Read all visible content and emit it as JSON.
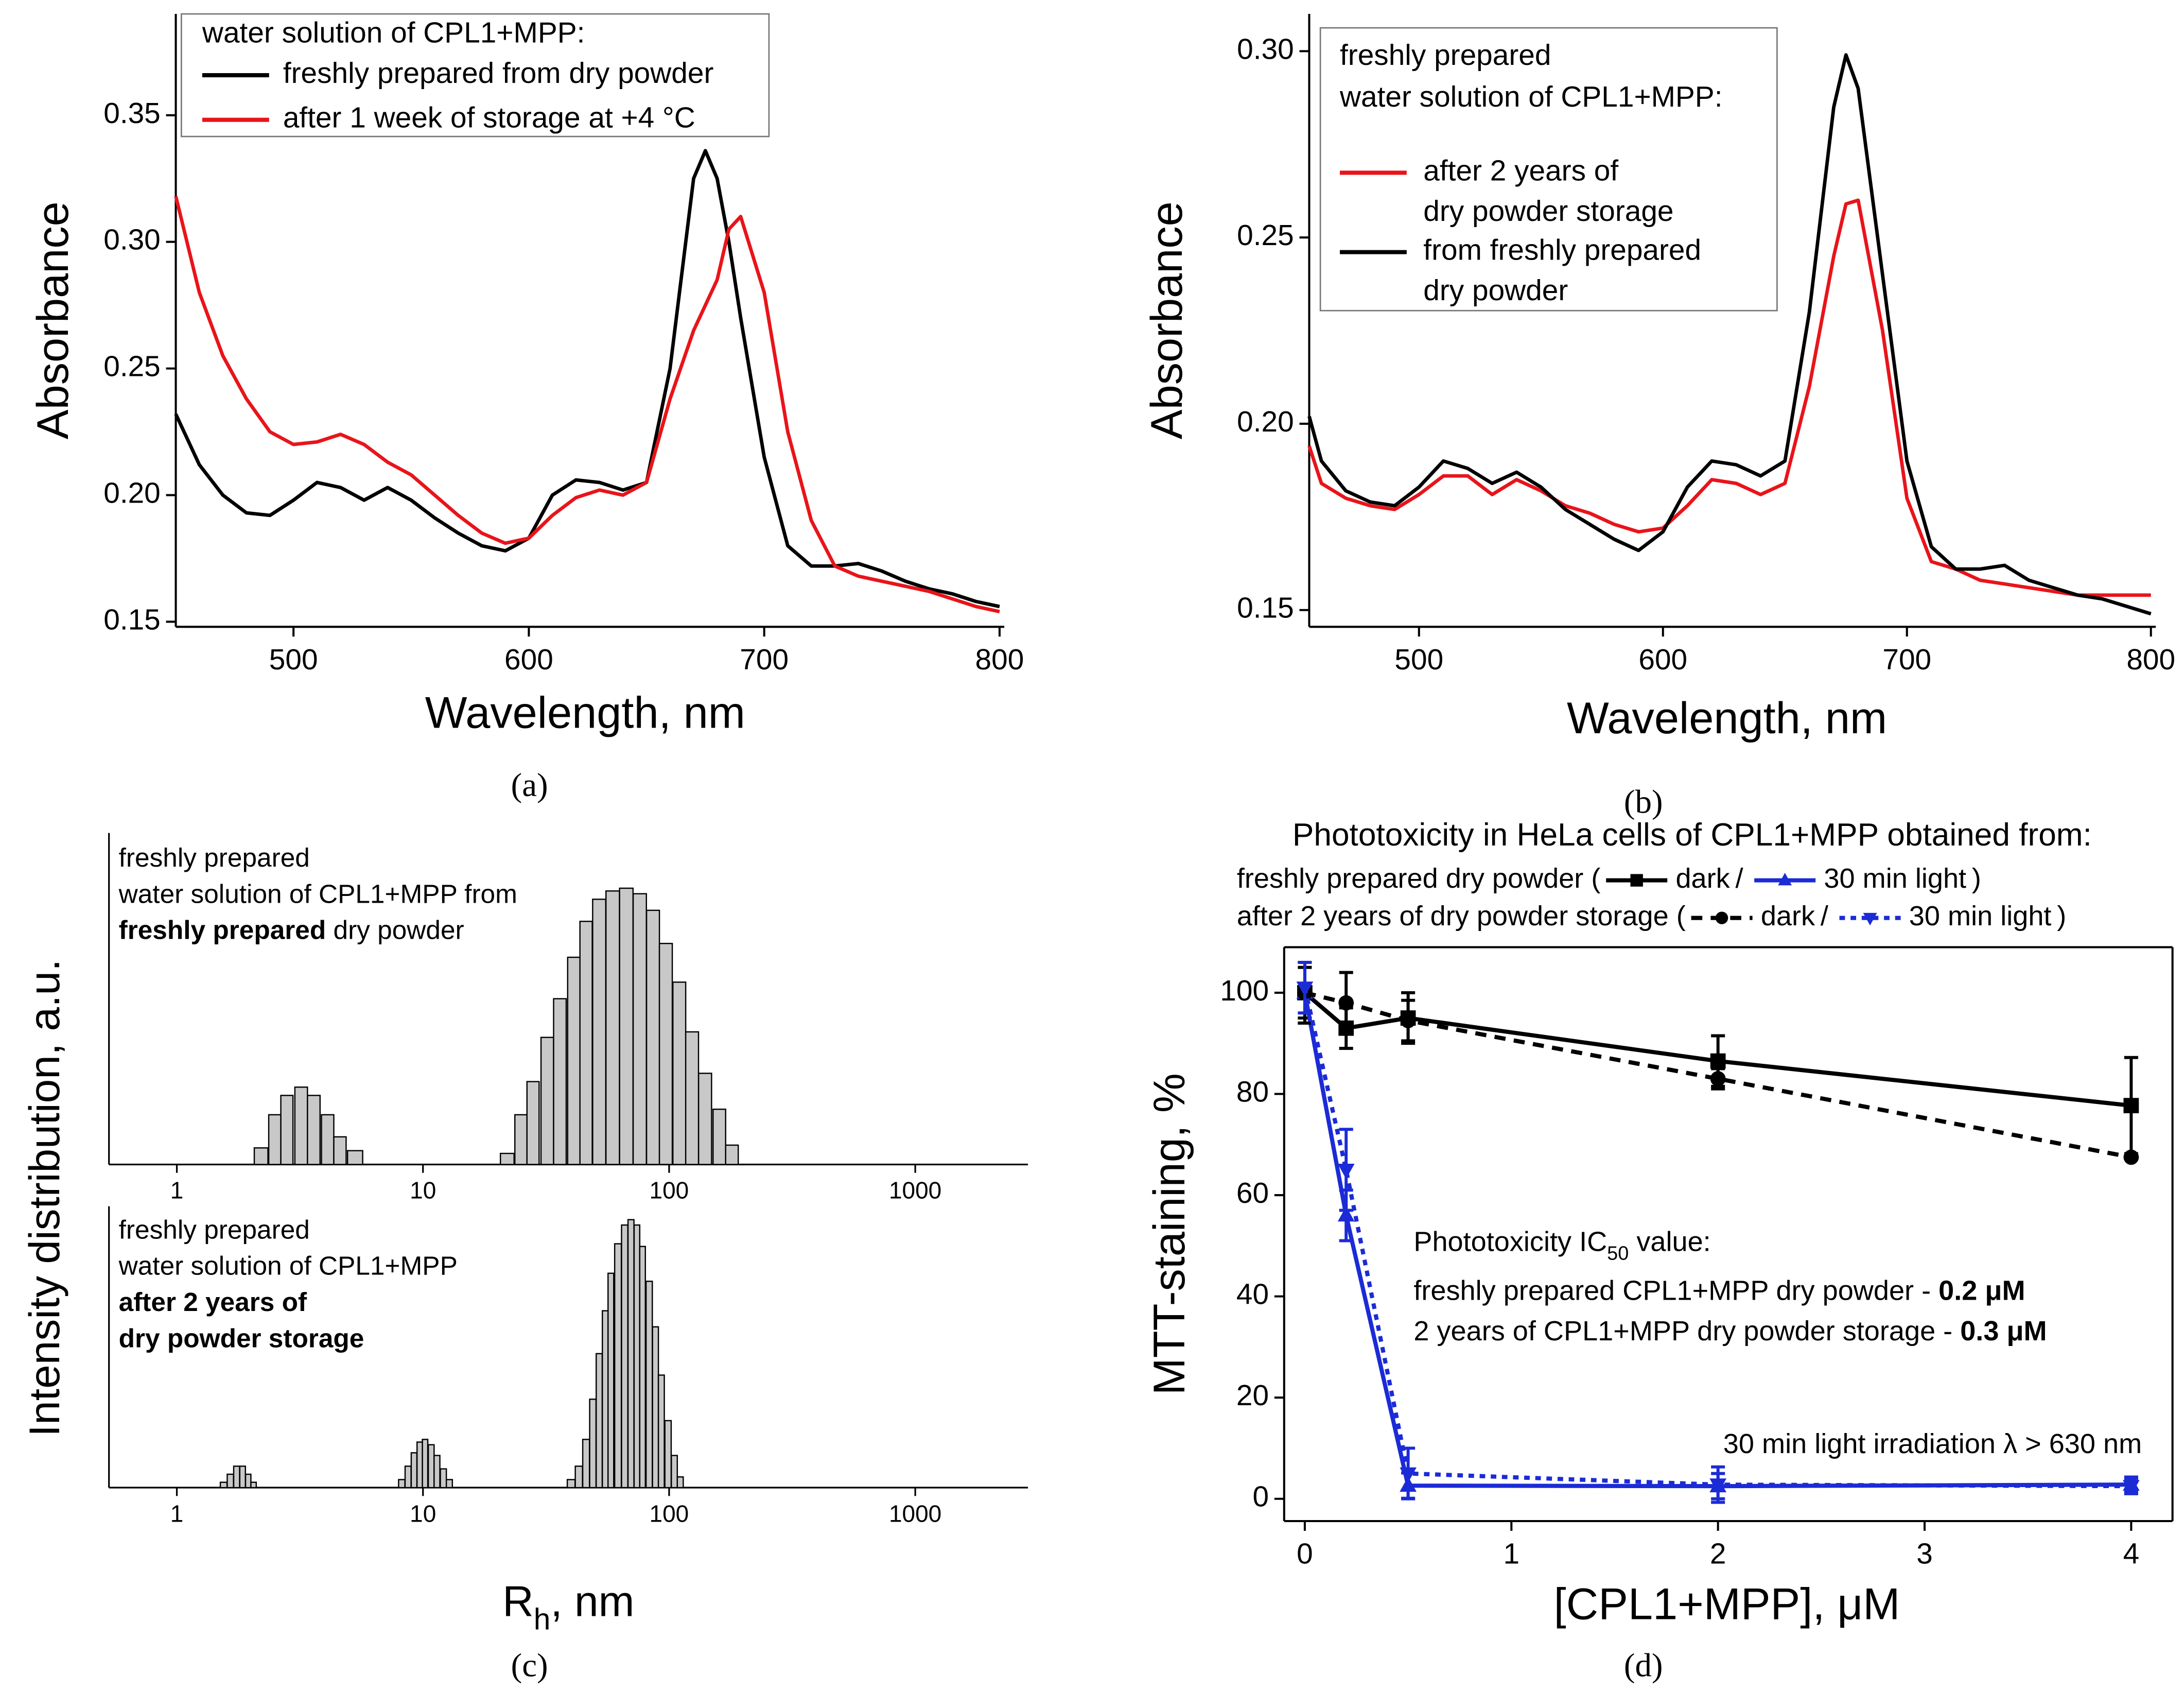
{
  "chart_data": [
    {
      "type": "line",
      "panel_label": "(a)",
      "xlabel": "Wavelength, nm",
      "ylabel": "Absorbance",
      "legend_title": [
        "water solution of CPL1+MPP:"
      ],
      "xlim": [
        450,
        802
      ],
      "ylim": [
        0.148,
        0.39
      ],
      "xticks": [
        500,
        600,
        700,
        800
      ],
      "yticks": [
        0.15,
        {
          "value": 0.2,
          "label": "0.20"
        },
        0.25,
        {
          "value": 0.3,
          "label": "0.30"
        },
        0.35
      ],
      "x": [
        450,
        460,
        470,
        480,
        490,
        500,
        510,
        520,
        530,
        540,
        550,
        560,
        570,
        580,
        590,
        600,
        610,
        620,
        630,
        640,
        650,
        660,
        670,
        675,
        680,
        685,
        690,
        700,
        710,
        720,
        730,
        740,
        750,
        760,
        770,
        780,
        790,
        800
      ],
      "series": [
        {
          "name": "freshly prepared from dry powder",
          "color": "#000000",
          "values": [
            0.232,
            0.212,
            0.2,
            0.193,
            0.192,
            0.198,
            0.205,
            0.203,
            0.198,
            0.203,
            0.198,
            0.191,
            0.185,
            0.18,
            0.178,
            0.183,
            0.2,
            0.206,
            0.205,
            0.202,
            0.205,
            0.25,
            0.325,
            0.336,
            0.325,
            0.3,
            0.27,
            0.215,
            0.18,
            0.172,
            0.172,
            0.173,
            0.17,
            0.166,
            0.163,
            0.161,
            0.158,
            0.156
          ]
        },
        {
          "name": "after 1 week of storage at +4 °C",
          "color": "#e8141a",
          "values": [
            0.318,
            0.28,
            0.255,
            0.238,
            0.225,
            0.22,
            0.221,
            0.224,
            0.22,
            0.213,
            0.208,
            0.2,
            0.192,
            0.185,
            0.181,
            0.183,
            0.192,
            0.199,
            0.202,
            0.2,
            0.205,
            0.238,
            0.265,
            0.275,
            0.285,
            0.305,
            0.31,
            0.28,
            0.225,
            0.19,
            0.172,
            0.168,
            0.166,
            0.164,
            0.162,
            0.159,
            0.156,
            0.154
          ]
        }
      ]
    },
    {
      "type": "line",
      "panel_label": "(b)",
      "xlabel": "Wavelength, nm",
      "ylabel": "Absorbance",
      "legend_title": [
        "freshly prepared",
        "water solution of CPL1+MPP:"
      ],
      "xlim": [
        455,
        802
      ],
      "ylim": [
        0.1455,
        0.31
      ],
      "xticks": [
        500,
        600,
        700,
        800
      ],
      "yticks": [
        0.15,
        {
          "value": 0.2,
          "label": "0.20"
        },
        0.25,
        {
          "value": 0.3,
          "label": "0.30"
        }
      ],
      "x": [
        455,
        460,
        470,
        480,
        490,
        500,
        510,
        520,
        530,
        540,
        550,
        560,
        570,
        580,
        590,
        600,
        610,
        620,
        630,
        640,
        650,
        660,
        670,
        675,
        680,
        690,
        700,
        710,
        720,
        730,
        740,
        750,
        760,
        770,
        780,
        790,
        800
      ],
      "series": [
        {
          "name": [
            "after 2 years of",
            "dry powder storage"
          ],
          "color": "#e8141a",
          "values": [
            0.194,
            0.184,
            0.18,
            0.178,
            0.177,
            0.181,
            0.186,
            0.186,
            0.181,
            0.185,
            0.182,
            0.178,
            0.176,
            0.173,
            0.171,
            0.172,
            0.178,
            0.185,
            0.184,
            0.181,
            0.184,
            0.21,
            0.245,
            0.259,
            0.26,
            0.225,
            0.18,
            0.163,
            0.161,
            0.158,
            0.157,
            0.156,
            0.155,
            0.154,
            0.154,
            0.154,
            0.154
          ]
        },
        {
          "name": [
            "from freshly prepared",
            "dry powder"
          ],
          "color": "#000000",
          "values": [
            0.202,
            0.19,
            0.182,
            0.179,
            0.178,
            0.183,
            0.19,
            0.188,
            0.184,
            0.187,
            0.183,
            0.177,
            0.173,
            0.169,
            0.166,
            0.171,
            0.183,
            0.19,
            0.189,
            0.186,
            0.19,
            0.23,
            0.285,
            0.299,
            0.29,
            0.24,
            0.19,
            0.167,
            0.161,
            0.161,
            0.162,
            0.158,
            0.156,
            0.154,
            0.153,
            0.151,
            0.149
          ]
        }
      ]
    },
    {
      "type": "histogram",
      "panel_label": "(c)",
      "xlabel": [
        {
          "text": "R"
        },
        {
          "text": "h",
          "sub": true
        },
        {
          "text": ", nm"
        }
      ],
      "ylabel": "Intensity distribution, a.u.",
      "xscale": "log",
      "xlim": [
        0.53,
        2870
      ],
      "xticks": [
        1,
        10,
        100,
        1000
      ],
      "panels": [
        {
          "ylim": [
            0,
            120
          ],
          "texts": [
            [
              {
                "text": "freshly prepared"
              }
            ],
            [
              {
                "text": "water solution of CPL1+MPP from"
              }
            ],
            [
              {
                "text": "freshly prepared",
                "bold": true
              },
              {
                "text": " dry powder"
              }
            ]
          ],
          "x": [
            2.2,
            2.5,
            2.8,
            3.2,
            3.6,
            4.1,
            4.6,
            5.3,
            22,
            25,
            28,
            32,
            36,
            41,
            46,
            52,
            59,
            67,
            76,
            86,
            97,
            110,
            124,
            140,
            160,
            180
          ],
          "values": [
            6,
            18,
            25,
            28,
            25,
            18,
            10,
            5,
            4,
            18,
            30,
            46,
            60,
            75,
            88,
            96,
            99,
            100,
            98,
            92,
            80,
            66,
            48,
            33,
            20,
            7
          ]
        },
        {
          "ylim": [
            0,
            105
          ],
          "texts": [
            [
              {
                "text": "freshly prepared"
              }
            ],
            [
              {
                "text": "water solution of CPL1+MPP"
              }
            ],
            [
              {
                "text": "after 2 years of",
                "bold": true
              }
            ],
            [
              {
                "text": "dry powder storage",
                "bold": true
              }
            ]
          ],
          "x": [
            1.55,
            1.65,
            1.75,
            1.85,
            1.95,
            2.05,
            8.2,
            8.7,
            9.2,
            9.7,
            10.2,
            10.8,
            11.4,
            12.1,
            12.8,
            40,
            43,
            46,
            49,
            52,
            55,
            58,
            62,
            66,
            70,
            74,
            78,
            83,
            88,
            93,
            99,
            105,
            111
          ],
          "values": [
            2,
            5,
            8,
            8,
            5,
            2,
            3,
            8,
            13,
            17,
            18,
            16,
            12,
            7,
            3,
            3,
            8,
            18,
            33,
            50,
            66,
            80,
            91,
            98,
            100,
            98,
            90,
            77,
            60,
            42,
            25,
            12,
            4
          ]
        }
      ]
    },
    {
      "type": "line",
      "panel_label": "(d)",
      "title": "Phototoxicity in HeLa cells of CPL1+MPP obtained from:",
      "xlabel": "[CPL1+MPP], μM",
      "ylabel": "MTT-staining, %",
      "xlim": [
        -0.1,
        4.2
      ],
      "ylim": [
        -4.4,
        109
      ],
      "xticks": [
        0,
        1,
        2,
        3,
        4
      ],
      "yticks": [
        0,
        20,
        40,
        60,
        80,
        100
      ],
      "x": [
        0,
        0.2,
        0.5,
        2,
        4
      ],
      "legend_groups": [
        {
          "label": "freshly prepared dry powder (",
          "separator": "/",
          "end": ")"
        },
        {
          "label": "after 2 years of dry powder storage (",
          "separator": "/",
          "end": ")"
        }
      ],
      "series": [
        {
          "name": "dark",
          "color": "#000000",
          "linestyle": "solid",
          "marker": "square",
          "values": [
            100,
            93,
            95,
            86.5,
            77.7
          ],
          "errors": [
            5,
            4,
            5,
            5,
            9.5
          ]
        },
        {
          "name": "30 min light",
          "color": "#1b2bd6",
          "linestyle": "solid",
          "marker": "triangle-up",
          "values": [
            100,
            56,
            2.6,
            2.5,
            2.8
          ],
          "errors": [
            6,
            5,
            2.5,
            2.5,
            1.5
          ]
        },
        {
          "name": "dark",
          "color": "#000000",
          "linestyle": "dashed",
          "marker": "circle",
          "values": [
            100,
            98,
            94.5,
            83,
            67.5
          ],
          "errors": [
            6,
            6,
            4,
            2,
            null
          ]
        },
        {
          "name": "30 min light",
          "color": "#1b2bd6",
          "linestyle": "dotted",
          "marker": "triangle-down",
          "values": [
            101,
            65,
            5,
            2.8,
            2.5
          ],
          "errors": [
            5,
            8,
            5,
            3.5,
            1.5
          ]
        }
      ],
      "annotations": [
        [
          {
            "text": "Phototoxicity IC"
          },
          {
            "text": "50",
            "sub": true
          },
          {
            "text": " value:"
          }
        ],
        [
          {
            "text": "freshly prepared CPL1+MPP dry powder - "
          },
          {
            "text": "0.2 μM",
            "bold": true
          }
        ],
        [
          {
            "text": "2 years of CPL1+MPP dry powder storage - "
          },
          {
            "text": "0.3 μM",
            "bold": true
          }
        ],
        [
          {
            "text": "30 min light irradiation λ > 630 nm"
          }
        ]
      ]
    }
  ]
}
